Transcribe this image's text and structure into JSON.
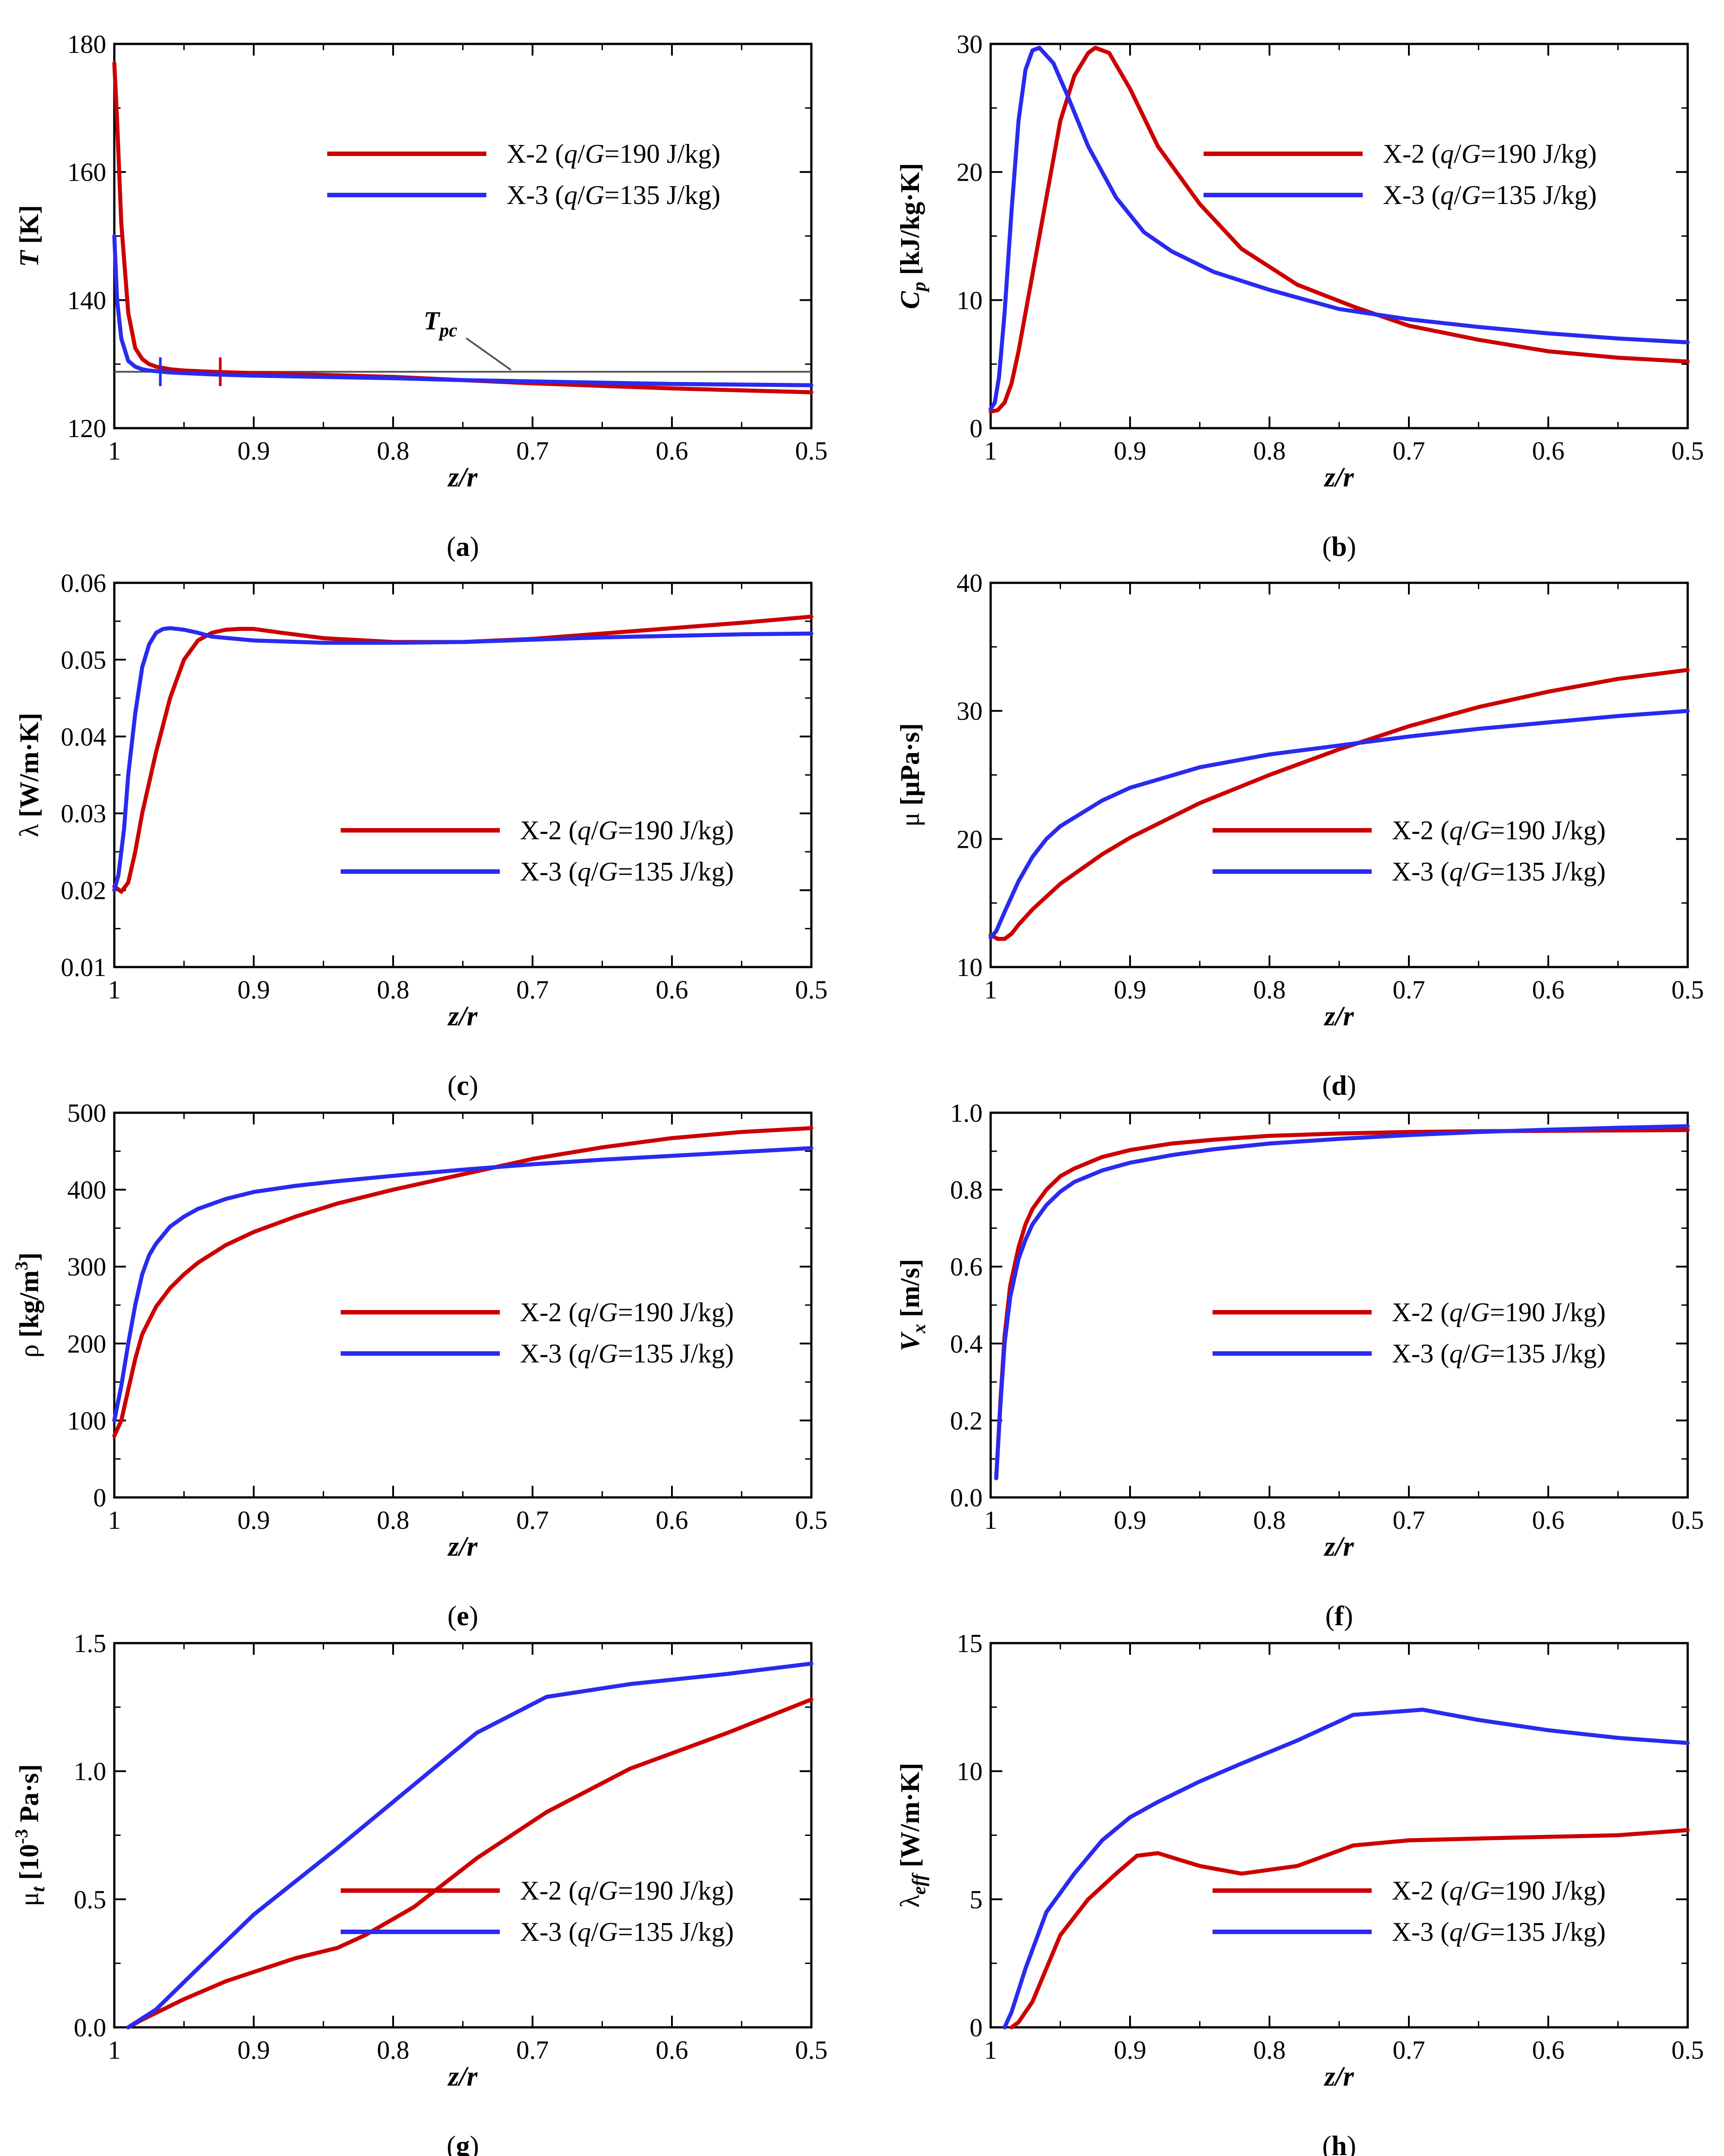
{
  "colors": {
    "x2": "#cc0000",
    "x3": "#2a2af0",
    "pc": "#555555"
  },
  "legend": {
    "x2": {
      "pre": "X-2 (",
      "q": "q",
      "slash": "/",
      "G": "G",
      "post": "=190 J/kg)"
    },
    "x3": {
      "pre": "X-3 (",
      "q": "q",
      "slash": "/",
      "G": "G",
      "post": "=135 J/kg)"
    }
  },
  "xlabel": {
    "z": "z",
    "slash": "/",
    "r": "r"
  },
  "panels": [
    {
      "id": "a",
      "label": {
        "open": "(",
        "letter": "a",
        "close": ")"
      },
      "ylabel": {
        "base": "T",
        "unit": " [K]"
      },
      "annotation": {
        "base": "T",
        "sub": "pc"
      }
    },
    {
      "id": "b",
      "label": {
        "open": "(",
        "letter": "b",
        "close": ")"
      },
      "ylabel": {
        "base": "C",
        "sub": "p",
        "unit": " [kJ/kg·K]"
      }
    },
    {
      "id": "c",
      "label": {
        "open": "(",
        "letter": "c",
        "close": ")"
      },
      "ylabel": {
        "base": "λ",
        "unit": " [W/m·K]"
      }
    },
    {
      "id": "d",
      "label": {
        "open": "(",
        "letter": "d",
        "close": ")"
      },
      "ylabel": {
        "base": "μ",
        "unit": " [μPa·s]"
      }
    },
    {
      "id": "e",
      "label": {
        "open": "(",
        "letter": "e",
        "close": ")"
      },
      "ylabel": {
        "base": "ρ",
        "unit": " [kg/m",
        "sup": "3",
        "close": "]"
      }
    },
    {
      "id": "f",
      "label": {
        "open": "(",
        "letter": "f",
        "close": ")"
      },
      "ylabel": {
        "base": "V",
        "sub": "x",
        "unit": " [m/s]"
      }
    },
    {
      "id": "g",
      "label": {
        "open": "(",
        "letter": "g",
        "close": ")"
      },
      "ylabel": {
        "base": "μ",
        "sub": "t",
        "unit": " [10",
        "sup": "-3",
        "close": " Pa·s]"
      }
    },
    {
      "id": "h",
      "label": {
        "open": "(",
        "letter": "h",
        "close": ")"
      },
      "ylabel": {
        "base": "λ",
        "sub": "eff",
        "unit": " [W/m·K]"
      }
    }
  ],
  "chart_data": [
    {
      "type": "line",
      "panel": "a",
      "xlim": [
        1,
        0.5
      ],
      "ylim": [
        120,
        180
      ],
      "xticks": [
        "1",
        "0.9",
        "0.8",
        "0.7",
        "0.6",
        "0.5"
      ],
      "yticks": [
        "120",
        "140",
        "160",
        "180"
      ],
      "legend_position": "top-right",
      "reference_line": {
        "y": 128.8
      },
      "series": [
        {
          "key": "x2",
          "markerX": 0.924,
          "x": [
            1,
            0.998,
            0.995,
            0.99,
            0.985,
            0.98,
            0.975,
            0.97,
            0.96,
            0.95,
            0.93,
            0.9,
            0.85,
            0.8,
            0.75,
            0.7,
            0.65,
            0.6,
            0.55,
            0.5
          ],
          "values": [
            177,
            168,
            152,
            138,
            132.5,
            130.8,
            130,
            129.6,
            129.2,
            129.0,
            128.8,
            128.6,
            128.3,
            128.0,
            127.5,
            127.0,
            126.6,
            126.2,
            125.9,
            125.6
          ]
        },
        {
          "key": "x3",
          "markerX": 0.967,
          "x": [
            1,
            0.998,
            0.995,
            0.99,
            0.985,
            0.98,
            0.975,
            0.97,
            0.96,
            0.95,
            0.93,
            0.9,
            0.85,
            0.8,
            0.75,
            0.7,
            0.65,
            0.6,
            0.55,
            0.5
          ],
          "values": [
            150,
            140,
            134,
            130.5,
            129.6,
            129.2,
            129.0,
            128.9,
            128.7,
            128.6,
            128.4,
            128.2,
            128.0,
            127.8,
            127.5,
            127.3,
            127.1,
            126.9,
            126.8,
            126.7
          ]
        }
      ]
    },
    {
      "type": "line",
      "panel": "b",
      "xlim": [
        1,
        0.5
      ],
      "ylim": [
        0,
        30
      ],
      "xticks": [
        "1",
        "0.9",
        "0.8",
        "0.7",
        "0.6",
        "0.5"
      ],
      "yticks": [
        "0",
        "10",
        "20",
        "30"
      ],
      "legend_position": "top-right",
      "series": [
        {
          "key": "x2",
          "x": [
            1,
            0.995,
            0.99,
            0.985,
            0.98,
            0.97,
            0.96,
            0.95,
            0.94,
            0.93,
            0.925,
            0.915,
            0.9,
            0.88,
            0.85,
            0.82,
            0.78,
            0.74,
            0.7,
            0.65,
            0.6,
            0.55,
            0.5
          ],
          "values": [
            1.3,
            1.4,
            2.0,
            3.5,
            6,
            12,
            18,
            24,
            27.5,
            29.3,
            29.7,
            29.3,
            26.5,
            22,
            17.5,
            14,
            11.2,
            9.5,
            8.0,
            6.9,
            6.0,
            5.5,
            5.2
          ]
        },
        {
          "key": "x3",
          "x": [
            1,
            0.997,
            0.994,
            0.99,
            0.985,
            0.98,
            0.975,
            0.97,
            0.965,
            0.955,
            0.945,
            0.93,
            0.91,
            0.89,
            0.87,
            0.84,
            0.8,
            0.75,
            0.7,
            0.65,
            0.6,
            0.55,
            0.5
          ],
          "values": [
            1.5,
            2.0,
            4.0,
            9,
            17,
            24,
            28,
            29.5,
            29.7,
            28.5,
            26,
            22,
            18,
            15.3,
            13.8,
            12.2,
            10.8,
            9.3,
            8.5,
            7.9,
            7.4,
            7.0,
            6.7
          ]
        }
      ]
    },
    {
      "type": "line",
      "panel": "c",
      "xlim": [
        1,
        0.5
      ],
      "ylim": [
        0.01,
        0.06
      ],
      "xticks": [
        "1",
        "0.9",
        "0.8",
        "0.7",
        "0.6",
        "0.5"
      ],
      "yticks": [
        "0.01",
        "0.02",
        "0.03",
        "0.04",
        "0.05",
        "0.06"
      ],
      "legend_position": "lower-right",
      "series": [
        {
          "key": "x2",
          "x": [
            1,
            0.995,
            0.99,
            0.985,
            0.98,
            0.97,
            0.96,
            0.95,
            0.94,
            0.93,
            0.92,
            0.91,
            0.9,
            0.88,
            0.85,
            0.8,
            0.75,
            0.7,
            0.65,
            0.6,
            0.55,
            0.5
          ],
          "values": [
            0.0205,
            0.0198,
            0.021,
            0.025,
            0.03,
            0.038,
            0.045,
            0.05,
            0.0525,
            0.0535,
            0.0539,
            0.054,
            0.054,
            0.0535,
            0.0528,
            0.0523,
            0.0523,
            0.0527,
            0.0534,
            0.0541,
            0.0548,
            0.0556
          ]
        },
        {
          "key": "x3",
          "x": [
            1,
            0.997,
            0.993,
            0.99,
            0.985,
            0.98,
            0.975,
            0.97,
            0.965,
            0.96,
            0.955,
            0.95,
            0.94,
            0.93,
            0.9,
            0.85,
            0.8,
            0.75,
            0.7,
            0.65,
            0.6,
            0.55,
            0.5
          ],
          "values": [
            0.02,
            0.022,
            0.028,
            0.035,
            0.043,
            0.049,
            0.052,
            0.0535,
            0.054,
            0.0541,
            0.054,
            0.0539,
            0.0535,
            0.053,
            0.0525,
            0.0522,
            0.0522,
            0.0523,
            0.0526,
            0.0529,
            0.0531,
            0.0533,
            0.0534
          ]
        }
      ]
    },
    {
      "type": "line",
      "panel": "d",
      "xlim": [
        1,
        0.5
      ],
      "ylim": [
        10,
        40
      ],
      "xticks": [
        "1",
        "0.9",
        "0.8",
        "0.7",
        "0.6",
        "0.5"
      ],
      "yticks": [
        "10",
        "20",
        "30",
        "40"
      ],
      "legend_position": "lower-right",
      "series": [
        {
          "key": "x2",
          "x": [
            1,
            0.995,
            0.99,
            0.985,
            0.98,
            0.97,
            0.95,
            0.92,
            0.9,
            0.85,
            0.8,
            0.75,
            0.7,
            0.65,
            0.6,
            0.55,
            0.5
          ],
          "values": [
            12.5,
            12.2,
            12.2,
            12.6,
            13.3,
            14.5,
            16.5,
            18.8,
            20.1,
            22.8,
            25.0,
            27.0,
            28.8,
            30.3,
            31.5,
            32.5,
            33.2
          ]
        },
        {
          "key": "x3",
          "x": [
            1,
            0.996,
            0.99,
            0.985,
            0.98,
            0.97,
            0.96,
            0.95,
            0.92,
            0.9,
            0.85,
            0.8,
            0.75,
            0.7,
            0.65,
            0.6,
            0.55,
            0.5
          ],
          "values": [
            12.3,
            12.8,
            14.3,
            15.5,
            16.7,
            18.6,
            20.0,
            21.0,
            23.0,
            24.0,
            25.6,
            26.6,
            27.3,
            28.0,
            28.6,
            29.1,
            29.6,
            30.0
          ]
        }
      ]
    },
    {
      "type": "line",
      "panel": "e",
      "xlim": [
        1,
        0.5
      ],
      "ylim": [
        0,
        500
      ],
      "xticks": [
        "1",
        "0.9",
        "0.8",
        "0.7",
        "0.6",
        "0.5"
      ],
      "yticks": [
        "0",
        "100",
        "200",
        "300",
        "400",
        "500"
      ],
      "legend_position": "center-right",
      "series": [
        {
          "key": "x2",
          "x": [
            1,
            0.995,
            0.99,
            0.985,
            0.98,
            0.97,
            0.96,
            0.95,
            0.94,
            0.92,
            0.9,
            0.87,
            0.84,
            0.8,
            0.75,
            0.7,
            0.65,
            0.6,
            0.55,
            0.5
          ],
          "values": [
            80,
            100,
            140,
            180,
            212,
            248,
            272,
            290,
            305,
            328,
            345,
            365,
            382,
            400,
            420,
            440,
            455,
            467,
            475,
            480
          ]
        },
        {
          "key": "x3",
          "x": [
            1,
            0.995,
            0.99,
            0.985,
            0.98,
            0.975,
            0.97,
            0.96,
            0.95,
            0.94,
            0.92,
            0.9,
            0.87,
            0.84,
            0.8,
            0.75,
            0.7,
            0.65,
            0.6,
            0.55,
            0.5
          ],
          "values": [
            100,
            145,
            200,
            250,
            290,
            315,
            330,
            352,
            365,
            375,
            388,
            397,
            405,
            411,
            418,
            426,
            433,
            439,
            444,
            449,
            454
          ]
        }
      ]
    },
    {
      "type": "line",
      "panel": "f",
      "xlim": [
        1,
        0.5
      ],
      "ylim": [
        0,
        1.0
      ],
      "xticks": [
        "1",
        "0.9",
        "0.8",
        "0.7",
        "0.6",
        "0.5"
      ],
      "yticks": [
        "0.0",
        "0.2",
        "0.4",
        "0.6",
        "0.8",
        "1.0"
      ],
      "legend_position": "center-right",
      "series": [
        {
          "key": "x2",
          "x": [
            0.996,
            0.993,
            0.99,
            0.986,
            0.98,
            0.975,
            0.97,
            0.96,
            0.95,
            0.94,
            0.92,
            0.9,
            0.87,
            0.84,
            0.8,
            0.75,
            0.7,
            0.65,
            0.6,
            0.55,
            0.5
          ],
          "values": [
            0.05,
            0.25,
            0.42,
            0.55,
            0.65,
            0.71,
            0.75,
            0.8,
            0.835,
            0.855,
            0.885,
            0.903,
            0.92,
            0.93,
            0.94,
            0.946,
            0.95,
            0.952,
            0.953,
            0.954,
            0.955
          ]
        },
        {
          "key": "x3",
          "x": [
            0.996,
            0.993,
            0.99,
            0.986,
            0.98,
            0.975,
            0.97,
            0.96,
            0.95,
            0.94,
            0.92,
            0.9,
            0.87,
            0.84,
            0.8,
            0.75,
            0.7,
            0.65,
            0.6,
            0.55,
            0.5
          ],
          "values": [
            0.05,
            0.24,
            0.4,
            0.52,
            0.62,
            0.67,
            0.71,
            0.76,
            0.795,
            0.82,
            0.85,
            0.87,
            0.89,
            0.905,
            0.92,
            0.932,
            0.942,
            0.95,
            0.956,
            0.961,
            0.965
          ]
        }
      ]
    },
    {
      "type": "line",
      "panel": "g",
      "xlim": [
        1,
        0.5
      ],
      "ylim": [
        0,
        1.5
      ],
      "xticks": [
        "1",
        "0.9",
        "0.8",
        "0.7",
        "0.6",
        "0.5"
      ],
      "yticks": [
        "0.0",
        "0.5",
        "1.0",
        "1.5"
      ],
      "legend_position": "lower-right",
      "series": [
        {
          "key": "x2",
          "x": [
            0.99,
            0.98,
            0.95,
            0.92,
            0.87,
            0.84,
            0.82,
            0.785,
            0.74,
            0.69,
            0.63,
            0.56,
            0.5
          ],
          "values": [
            0.0,
            0.03,
            0.11,
            0.18,
            0.27,
            0.31,
            0.36,
            0.47,
            0.66,
            0.84,
            1.01,
            1.15,
            1.28
          ]
        },
        {
          "key": "x3",
          "x": [
            0.99,
            0.97,
            0.94,
            0.9,
            0.84,
            0.74,
            0.69,
            0.63,
            0.56,
            0.5
          ],
          "values": [
            0.0,
            0.07,
            0.23,
            0.44,
            0.7,
            1.15,
            1.29,
            1.34,
            1.38,
            1.42
          ]
        }
      ]
    },
    {
      "type": "line",
      "panel": "h",
      "xlim": [
        1,
        0.5
      ],
      "ylim": [
        0,
        15
      ],
      "xticks": [
        "1",
        "0.9",
        "0.8",
        "0.7",
        "0.6",
        "0.5"
      ],
      "yticks": [
        "0",
        "5",
        "10",
        "15"
      ],
      "legend_position": "lower-right",
      "series": [
        {
          "key": "x2",
          "x": [
            0.985,
            0.98,
            0.97,
            0.95,
            0.93,
            0.91,
            0.895,
            0.88,
            0.85,
            0.82,
            0.78,
            0.74,
            0.7,
            0.63,
            0.55,
            0.5
          ],
          "values": [
            0.0,
            0.2,
            1.0,
            3.6,
            5.0,
            6.0,
            6.7,
            6.8,
            6.3,
            6.0,
            6.3,
            7.1,
            7.3,
            7.4,
            7.5,
            7.7
          ]
        },
        {
          "key": "x3",
          "x": [
            0.99,
            0.985,
            0.975,
            0.96,
            0.94,
            0.92,
            0.9,
            0.88,
            0.85,
            0.82,
            0.78,
            0.74,
            0.69,
            0.65,
            0.6,
            0.55,
            0.5
          ],
          "values": [
            0.0,
            0.6,
            2.3,
            4.5,
            6.0,
            7.3,
            8.2,
            8.8,
            9.6,
            10.3,
            11.2,
            12.2,
            12.4,
            12.0,
            11.6,
            11.3,
            11.1
          ]
        }
      ]
    }
  ]
}
